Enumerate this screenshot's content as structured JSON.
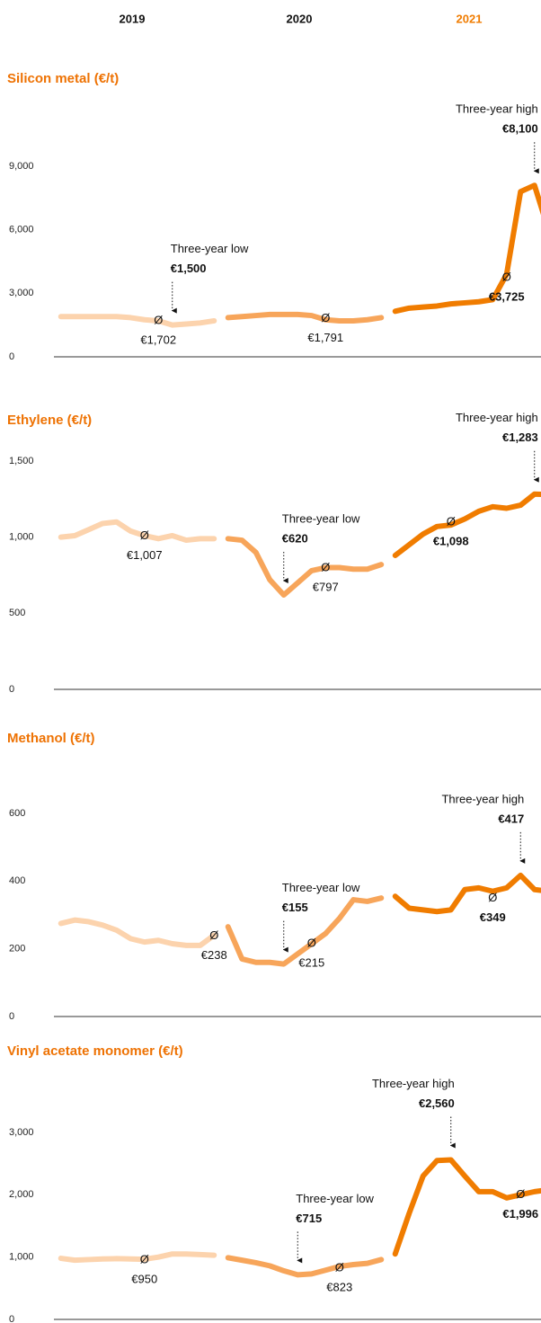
{
  "chart_data": [
    {
      "type": "line",
      "title": "Silicon metal (€/t)",
      "ylim": [
        0,
        9000
      ],
      "yticks": [
        0,
        {
          "value": 3000,
          "label": "3,000"
        },
        {
          "value": 6000,
          "label": "6,000"
        },
        {
          "value": 9000,
          "label": "9,000"
        }
      ],
      "average_symbol": "Ø",
      "series": [
        {
          "name": "2019",
          "color": "#fcd3ad",
          "values": [
            1900,
            1900,
            1900,
            1900,
            1900,
            1850,
            1750,
            1700,
            1500,
            1550,
            1600,
            1700
          ],
          "average": 1702,
          "average_label": "€1,702"
        },
        {
          "name": "2020",
          "color": "#f7a55a",
          "values": [
            1850,
            1900,
            1950,
            2000,
            2000,
            2000,
            1950,
            1750,
            1700,
            1700,
            1750,
            1850
          ],
          "average": 1791,
          "average_label": "€1,791"
        },
        {
          "name": "2021",
          "color": "#f07c00",
          "values": [
            2150,
            2300,
            2350,
            2400,
            2500,
            2550,
            2600,
            2700,
            3900,
            7800,
            8100,
            6000
          ],
          "average": 3725,
          "average_label": "€3,725"
        }
      ],
      "annotations": [
        {
          "text": "Three-year low",
          "value": 1500,
          "value_label": "€1,500",
          "series": 0,
          "index": 8
        },
        {
          "text": "Three-year high",
          "value": 8100,
          "value_label": "€8,100",
          "series": 2,
          "index": 10
        }
      ]
    },
    {
      "type": "line",
      "title": "Ethylene (€/t)",
      "ylim": [
        0,
        1500
      ],
      "yticks": [
        0,
        500,
        {
          "value": 1000,
          "label": "1,000"
        },
        {
          "value": 1500,
          "label": "1,500"
        }
      ],
      "average_symbol": "Ø",
      "series": [
        {
          "name": "2019",
          "color": "#fcd3ad",
          "values": [
            1000,
            1010,
            1050,
            1090,
            1100,
            1040,
            1010,
            990,
            1010,
            980,
            990,
            990
          ],
          "average": 1007,
          "average_label": "€1,007"
        },
        {
          "name": "2020",
          "color": "#f7a55a",
          "values": [
            990,
            980,
            900,
            720,
            620,
            700,
            780,
            800,
            800,
            790,
            790,
            820
          ],
          "average": 797,
          "average_label": "€797"
        },
        {
          "name": "2021",
          "color": "#f07c00",
          "values": [
            880,
            950,
            1020,
            1070,
            1080,
            1120,
            1170,
            1200,
            1190,
            1210,
            1283,
            1280
          ],
          "average": 1098,
          "average_label": "€1,098"
        }
      ],
      "annotations": [
        {
          "text": "Three-year low",
          "value": 620,
          "value_label": "€620",
          "series": 1,
          "index": 4
        },
        {
          "text": "Three-year high",
          "value": 1283,
          "value_label": "€1,283",
          "series": 2,
          "index": 10
        }
      ]
    },
    {
      "type": "line",
      "title": "Methanol (€/t)",
      "ylim": [
        0,
        600
      ],
      "yticks": [
        0,
        200,
        400,
        600
      ],
      "average_symbol": "Ø",
      "series": [
        {
          "name": "2019",
          "color": "#fcd3ad",
          "values": [
            275,
            285,
            280,
            270,
            255,
            230,
            220,
            225,
            215,
            210,
            210,
            240
          ],
          "average": 238,
          "average_label": "€238"
        },
        {
          "name": "2020",
          "color": "#f7a55a",
          "values": [
            265,
            170,
            160,
            160,
            155,
            185,
            215,
            245,
            290,
            345,
            340,
            350
          ],
          "average": 215,
          "average_label": "€215"
        },
        {
          "name": "2021",
          "color": "#f07c00",
          "values": [
            355,
            320,
            315,
            310,
            315,
            375,
            380,
            370,
            380,
            417,
            375,
            370
          ],
          "average": 349,
          "average_label": "€349"
        }
      ],
      "annotations": [
        {
          "text": "Three-year low",
          "value": 155,
          "value_label": "€155",
          "series": 1,
          "index": 4
        },
        {
          "text": "Three-year high",
          "value": 417,
          "value_label": "€417",
          "series": 2,
          "index": 9
        }
      ]
    },
    {
      "type": "line",
      "title": "Vinyl acetate monomer (€/t)",
      "ylim": [
        0,
        3000
      ],
      "yticks": [
        0,
        {
          "value": 1000,
          "label": "1,000"
        },
        {
          "value": 2000,
          "label": "2,000"
        },
        {
          "value": 3000,
          "label": "3,000"
        }
      ],
      "average_symbol": "Ø",
      "series": [
        {
          "name": "2019",
          "color": "#fcd3ad",
          "values": [
            980,
            950,
            960,
            970,
            975,
            970,
            965,
            1000,
            1050,
            1050,
            1040,
            1030
          ],
          "average": 950,
          "average_label": "€950"
        },
        {
          "name": "2020",
          "color": "#f7a55a",
          "values": [
            990,
            950,
            910,
            860,
            780,
            715,
            730,
            790,
            850,
            880,
            900,
            960
          ],
          "average": 823,
          "average_label": "€823"
        },
        {
          "name": "2021",
          "color": "#f07c00",
          "values": [
            1050,
            1700,
            2300,
            2550,
            2560,
            2300,
            2050,
            2050,
            1950,
            2000,
            2050,
            2080
          ],
          "average": 1996,
          "average_label": "€1,996"
        }
      ],
      "annotations": [
        {
          "text": "Three-year low",
          "value": 715,
          "value_label": "€715",
          "series": 1,
          "index": 5
        },
        {
          "text": "Three-year high",
          "value": 2560,
          "value_label": "€2,560",
          "series": 2,
          "index": 4
        }
      ]
    }
  ]
}
